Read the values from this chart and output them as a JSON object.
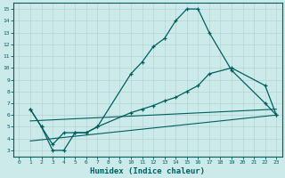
{
  "xlabel": "Humidex (Indice chaleur)",
  "xlim": [
    -0.5,
    23.5
  ],
  "ylim": [
    2.5,
    15.5
  ],
  "xticks": [
    0,
    1,
    2,
    3,
    4,
    5,
    6,
    7,
    8,
    9,
    10,
    11,
    12,
    13,
    14,
    15,
    16,
    17,
    18,
    19,
    20,
    21,
    22,
    23
  ],
  "yticks": [
    3,
    4,
    5,
    6,
    7,
    8,
    9,
    10,
    11,
    12,
    13,
    14,
    15
  ],
  "bg_color": "#cceaea",
  "grid_color": "#b8d8d8",
  "line_color": "#005f5f",
  "curve1_x": [
    1,
    2,
    3,
    4,
    5,
    6,
    7,
    10,
    11,
    12,
    13,
    14,
    15,
    16,
    17,
    19,
    22,
    23
  ],
  "curve1_y": [
    6.5,
    5.0,
    3.0,
    3.0,
    4.5,
    4.5,
    5.0,
    9.5,
    10.5,
    11.8,
    12.5,
    14.0,
    15.0,
    15.0,
    13.0,
    9.8,
    7.0,
    6.0
  ],
  "curve2_x": [
    1,
    2,
    3,
    4,
    5,
    6,
    7,
    10,
    11,
    12,
    13,
    14,
    15,
    16,
    17,
    19,
    22,
    23
  ],
  "curve2_y": [
    6.5,
    5.0,
    3.5,
    4.5,
    4.5,
    4.5,
    5.0,
    6.2,
    6.5,
    6.8,
    7.2,
    7.5,
    8.0,
    8.5,
    9.5,
    10.0,
    8.5,
    6.0
  ],
  "line1_x": [
    1,
    23
  ],
  "line1_y": [
    5.5,
    6.5
  ],
  "line2_x": [
    1,
    23
  ],
  "line2_y": [
    3.8,
    6.0
  ]
}
